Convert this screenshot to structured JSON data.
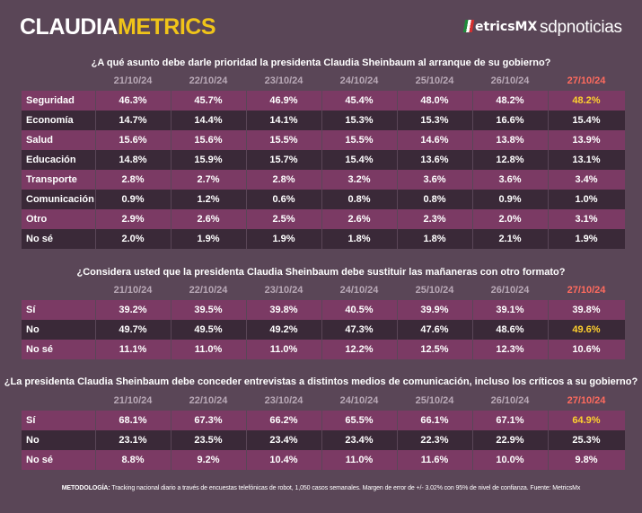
{
  "brand": {
    "part1": "CLAUDIA",
    "part2": "METRICS"
  },
  "partners": {
    "metricsmx": "etricsMX",
    "metricsmx_prefix": "M",
    "sdp": "sdpnoticias"
  },
  "dates": [
    "21/10/24",
    "22/10/24",
    "23/10/24",
    "24/10/24",
    "25/10/24",
    "26/10/24",
    "27/10/24"
  ],
  "q1": {
    "question": "¿A qué asunto debe darle prioridad la presidenta Claudia Sheinbaum al arranque de su gobierno?",
    "rows": [
      {
        "label": "Seguridad",
        "values": [
          "46.3%",
          "45.7%",
          "46.9%",
          "45.4%",
          "48.0%",
          "48.2%",
          "48.2%"
        ]
      },
      {
        "label": "Economía",
        "values": [
          "14.7%",
          "14.4%",
          "14.1%",
          "15.3%",
          "15.3%",
          "16.6%",
          "15.4%"
        ]
      },
      {
        "label": "Salud",
        "values": [
          "15.6%",
          "15.6%",
          "15.5%",
          "15.5%",
          "14.6%",
          "13.8%",
          "13.9%"
        ]
      },
      {
        "label": "Educación",
        "values": [
          "14.8%",
          "15.9%",
          "15.7%",
          "15.4%",
          "13.6%",
          "12.8%",
          "13.1%"
        ]
      },
      {
        "label": "Transporte",
        "values": [
          "2.8%",
          "2.7%",
          "2.8%",
          "3.2%",
          "3.6%",
          "3.6%",
          "3.4%"
        ]
      },
      {
        "label": "Comunicación",
        "values": [
          "0.9%",
          "1.2%",
          "0.6%",
          "0.8%",
          "0.8%",
          "0.9%",
          "1.0%"
        ]
      },
      {
        "label": "Otro",
        "values": [
          "2.9%",
          "2.6%",
          "2.5%",
          "2.6%",
          "2.3%",
          "2.0%",
          "3.1%"
        ]
      },
      {
        "label": "No sé",
        "values": [
          "2.0%",
          "1.9%",
          "1.9%",
          "1.8%",
          "1.8%",
          "2.1%",
          "1.9%"
        ]
      }
    ]
  },
  "q2": {
    "question": "¿Considera usted que la presidenta Claudia Sheinbaum debe sustituir las mañaneras con otro formato?",
    "rows": [
      {
        "label": "Sí",
        "values": [
          "39.2%",
          "39.5%",
          "39.8%",
          "40.5%",
          "39.9%",
          "39.1%",
          "39.8%"
        ]
      },
      {
        "label": "No",
        "values": [
          "49.7%",
          "49.5%",
          "49.2%",
          "47.3%",
          "47.6%",
          "48.6%",
          "49.6%"
        ]
      },
      {
        "label": "No sé",
        "values": [
          "11.1%",
          "11.0%",
          "11.0%",
          "12.2%",
          "12.5%",
          "12.3%",
          "10.6%"
        ]
      }
    ]
  },
  "q3": {
    "question": "¿La presidenta Claudia Sheinbaum debe conceder entrevistas a distintos medios de comunicación, incluso los críticos a su gobierno?",
    "rows": [
      {
        "label": "Sí",
        "values": [
          "68.1%",
          "67.3%",
          "66.2%",
          "65.5%",
          "66.1%",
          "67.1%",
          "64.9%"
        ]
      },
      {
        "label": "No",
        "values": [
          "23.1%",
          "23.5%",
          "23.4%",
          "23.4%",
          "22.3%",
          "22.9%",
          "25.3%"
        ]
      },
      {
        "label": "No sé",
        "values": [
          "8.8%",
          "9.2%",
          "10.4%",
          "11.0%",
          "11.6%",
          "10.0%",
          "9.8%"
        ]
      }
    ]
  },
  "footer": {
    "label": "METODOLOGÍA:",
    "text": "Tracking nacional diario a través de encuestas telefónicas de robot, 1,050 casos semanales. Margen de error de +/- 3.02% con 95% de nivel de confianza. Fuente: MetricsMx"
  },
  "colors": {
    "accent": "#f0c419",
    "highlight_date": "#ff6b5e",
    "highlight_value": "#ffd12e",
    "row_odd": "#7b3a64",
    "row_even": "#3a2938",
    "background": "#5a4657"
  }
}
